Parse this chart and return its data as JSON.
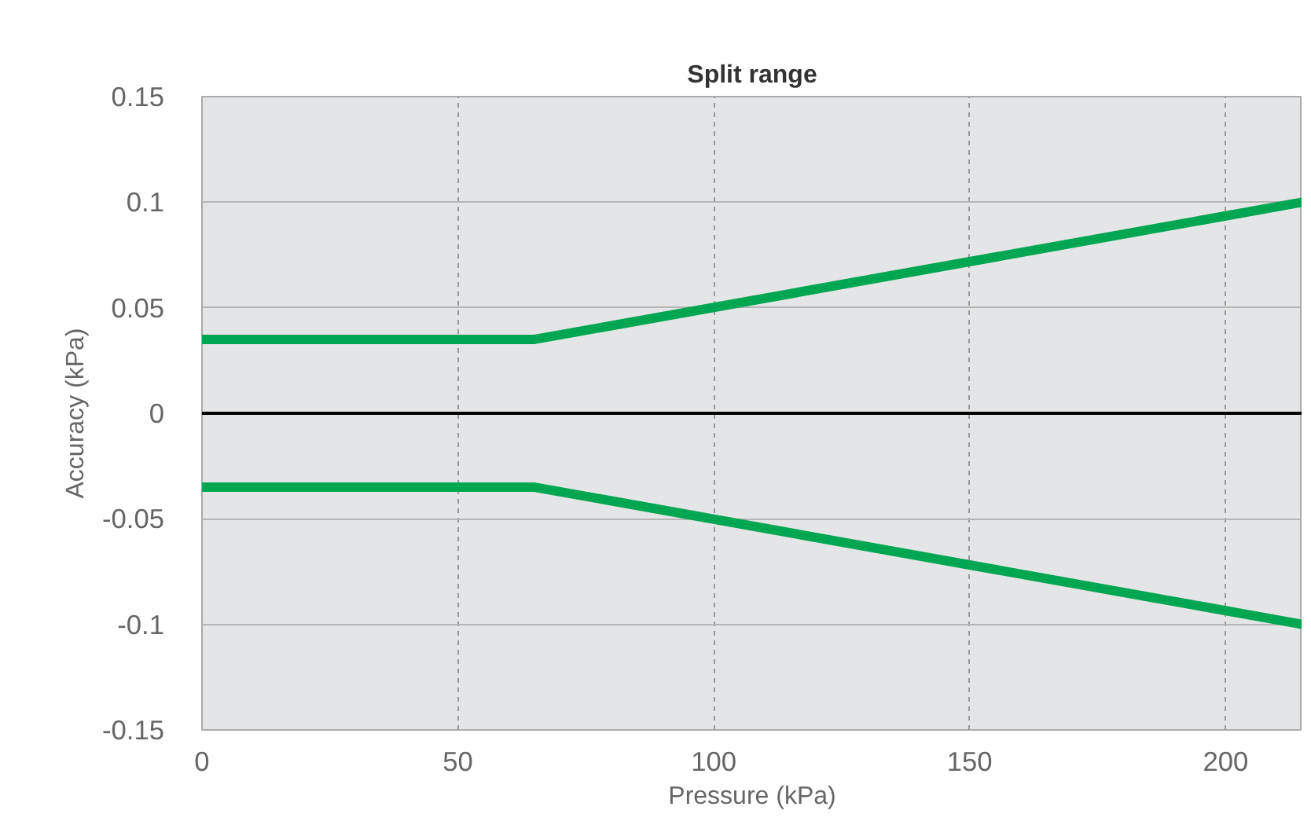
{
  "chart_data": {
    "type": "line",
    "title": "Split range",
    "xlabel": "Pressure (kPa)",
    "ylabel": "Accuracy (kPa)",
    "x": [
      0,
      65,
      215
    ],
    "series": [
      {
        "color": "#00a651",
        "values": [
          0.035,
          0.035,
          0.1
        ]
      },
      {
        "color": "#00a651",
        "values": [
          -0.035,
          -0.035,
          -0.1
        ]
      }
    ],
    "xlim": [
      0,
      215
    ],
    "xticks": [
      0,
      50,
      100,
      150,
      200
    ],
    "ylim": [
      -0.15,
      0.15
    ],
    "yticks": [
      -0.15,
      -0.1,
      -0.05,
      0,
      0.05,
      0.1,
      0.15
    ],
    "ref_lines": [
      {
        "axis": "y",
        "value": 0,
        "color": "#000000"
      }
    ],
    "grid": true,
    "marker": "none",
    "line_style": "solid"
  }
}
